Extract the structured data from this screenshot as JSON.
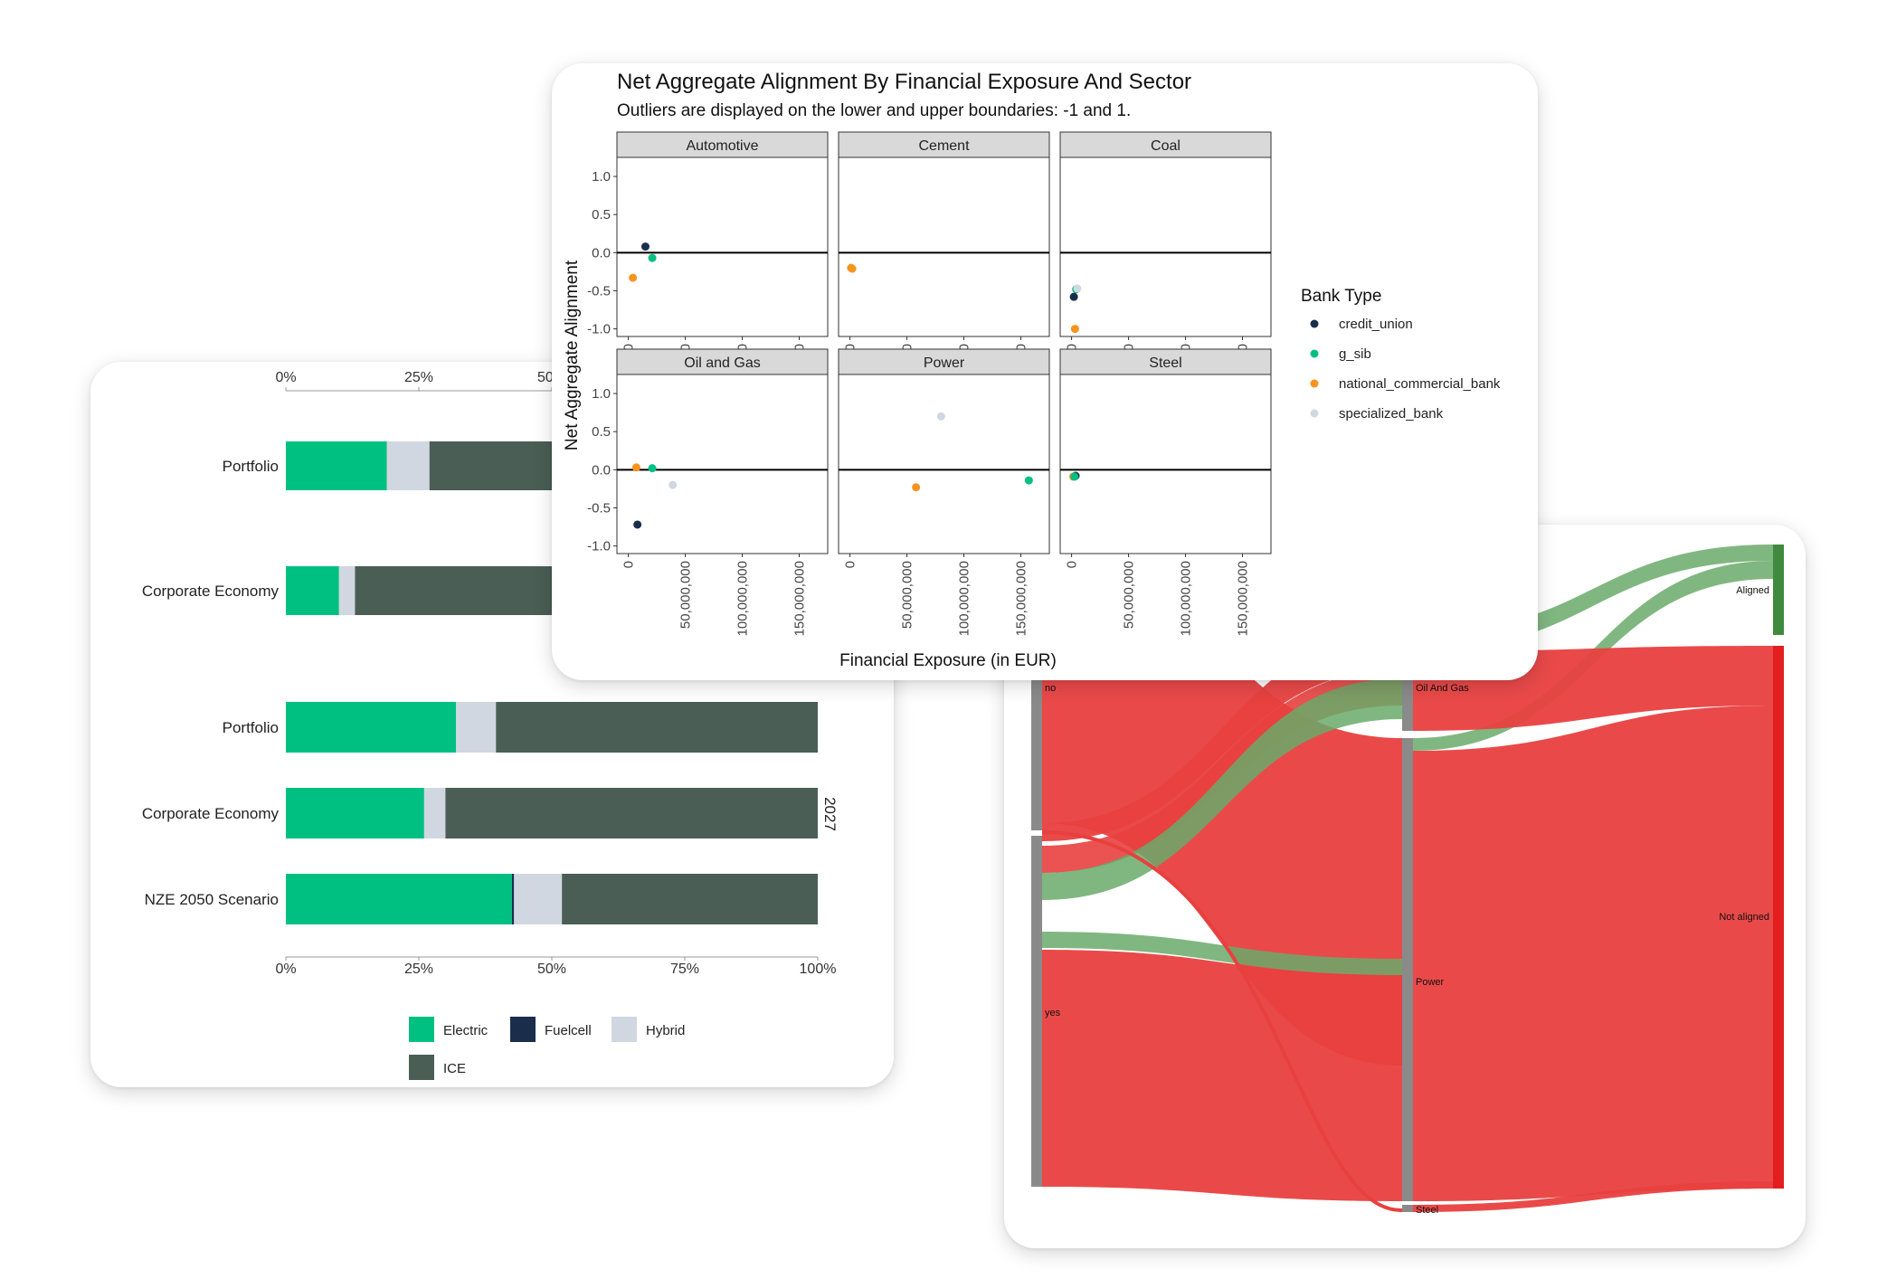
{
  "chart_data": [
    {
      "type": "bar",
      "orientation": "horizontal",
      "stacked": true,
      "percent_scale": true,
      "x_ticks": [
        "0%",
        "25%",
        "50%",
        "75%",
        "100%"
      ],
      "facet_label": "2027",
      "legend_placement": "bottom",
      "categories": [
        "Portfolio",
        "Corporate Economy",
        "Portfolio",
        "Corporate Economy",
        "NZE 2050 Scenario"
      ],
      "series": [
        {
          "name": "Electric",
          "color": "#00c081",
          "values": [
            0.19,
            0.1,
            0.32,
            0.26,
            0.425
          ]
        },
        {
          "name": "Fuelcell",
          "color": "#1a2e4c",
          "values": [
            0.0,
            0.0,
            0.0,
            0.0,
            0.004
          ]
        },
        {
          "name": "Hybrid",
          "color": "#d1d7e0",
          "values": [
            0.08,
            0.03,
            0.075,
            0.04,
            0.09
          ]
        },
        {
          "name": "ICE",
          "color": "#4a5e55",
          "values": [
            0.73,
            0.87,
            0.605,
            0.7,
            0.481
          ]
        }
      ]
    },
    {
      "type": "scatter",
      "title": "Net Aggregate Alignment By Financial Exposure And Sector",
      "subtitle": "Outliers are displayed on the lower and upper boundaries: -1 and 1.",
      "xlabel": "Financial Exposure (in EUR)",
      "ylabel": "Net Aggregate Alignment",
      "xlim": [
        -10000000,
        175000000
      ],
      "ylim": [
        -1.1,
        1.25
      ],
      "x_ticks": [
        {
          "v": 0,
          "label": "0"
        },
        {
          "v": 50000000,
          "label": "50,000,000"
        },
        {
          "v": 100000000,
          "label": "100,000,000"
        },
        {
          "v": 150000000,
          "label": "150,000,000"
        }
      ],
      "y_ticks": [
        {
          "v": 1.0,
          "label": "1.0"
        },
        {
          "v": 0.5,
          "label": "0.5"
        },
        {
          "v": 0.0,
          "label": "0.0"
        },
        {
          "v": -0.5,
          "label": "-0.5"
        },
        {
          "v": -1.0,
          "label": "-1.0"
        }
      ],
      "legend_title": "Bank Type",
      "legend_placement": "right",
      "series": [
        {
          "name": "credit_union",
          "color": "#1a2e4c"
        },
        {
          "name": "g_sib",
          "color": "#00c081"
        },
        {
          "name": "national_commercial_bank",
          "color": "#f7931e"
        },
        {
          "name": "specialized_bank",
          "color": "#d1d7e0"
        }
      ],
      "facets": [
        {
          "label": "Automotive",
          "points": [
            {
              "series": "credit_union",
              "x": 15000000,
              "y": 0.08
            },
            {
              "series": "g_sib",
              "x": 21000000,
              "y": -0.07
            },
            {
              "series": "national_commercial_bank",
              "x": 4000000,
              "y": -0.33
            }
          ]
        },
        {
          "label": "Cement",
          "points": [
            {
              "series": "national_commercial_bank",
              "x": 1000000,
              "y": -0.2
            },
            {
              "series": "national_commercial_bank",
              "x": 2000000,
              "y": -0.21
            }
          ]
        },
        {
          "label": "Coal",
          "points": [
            {
              "series": "g_sib",
              "x": 4000000,
              "y": -0.48
            },
            {
              "series": "specialized_bank",
              "x": 5000000,
              "y": -0.47
            },
            {
              "series": "credit_union",
              "x": 2000000,
              "y": -0.58
            },
            {
              "series": "national_commercial_bank",
              "x": 3000000,
              "y": -1.0
            }
          ]
        },
        {
          "label": "Oil and Gas",
          "points": [
            {
              "series": "national_commercial_bank",
              "x": 7000000,
              "y": 0.03
            },
            {
              "series": "g_sib",
              "x": 21000000,
              "y": 0.02
            },
            {
              "series": "specialized_bank",
              "x": 39000000,
              "y": -0.2
            },
            {
              "series": "credit_union",
              "x": 8000000,
              "y": -0.72
            }
          ]
        },
        {
          "label": "Power",
          "points": [
            {
              "series": "specialized_bank",
              "x": 80000000,
              "y": 0.7
            },
            {
              "series": "national_commercial_bank",
              "x": 58000000,
              "y": -0.23
            },
            {
              "series": "g_sib",
              "x": 157000000,
              "y": -0.14
            }
          ]
        },
        {
          "label": "Steel",
          "points": [
            {
              "series": "national_commercial_bank",
              "x": 1500000,
              "y": -0.09
            },
            {
              "series": "credit_union",
              "x": 3500000,
              "y": -0.08
            },
            {
              "series": "g_sib",
              "x": 2500000,
              "y": -0.09
            }
          ]
        }
      ]
    },
    {
      "type": "sankey",
      "colors": {
        "aligned": "#6aaa6a",
        "not_aligned": "#e8403f",
        "node": "#8a8a8a"
      },
      "nodes": {
        "left": [
          "no",
          "yes"
        ],
        "middle": [
          "Oil And Gas",
          "Power",
          "Steel"
        ],
        "right": [
          "Aligned",
          "Not aligned"
        ]
      }
    }
  ]
}
